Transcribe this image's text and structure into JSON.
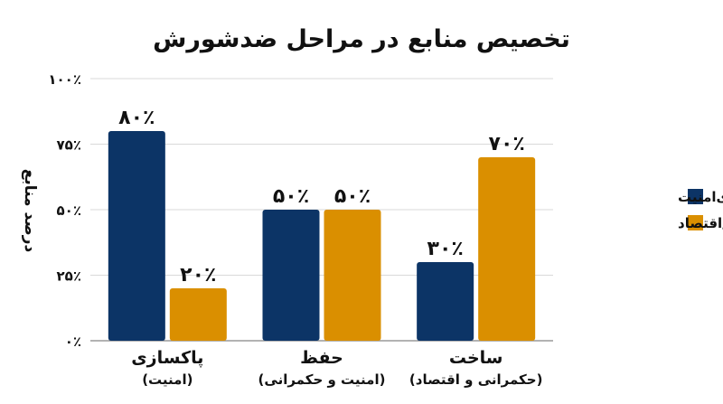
{
  "chart_data": {
    "type": "bar",
    "title": "تخصیص منابع در مراحل ضدشورش",
    "ylabel": "درصد منابع",
    "xlabel": "",
    "ylim": [
      0,
      100
    ],
    "y_ticks": [
      "۰٪",
      "۲۵٪",
      "۵۰٪",
      "۷۵٪",
      "۱۰۰٪"
    ],
    "y_tick_values": [
      0,
      25,
      50,
      75,
      100
    ],
    "grid": true,
    "legend_position": "right",
    "categories": [
      "پاکسازی",
      "حفظ",
      "ساخت"
    ],
    "category_subtitles": [
      "(امنیت)",
      "(امنیت و حکمرانی)",
      "(حکمرانی و اقتصاد)"
    ],
    "series": [
      {
        "name": "سرمه‌ای‌امنیت",
        "color": "#0c3466",
        "values": [
          80,
          50,
          30
        ],
        "labels": [
          "۸۰٪",
          "۵۰٪",
          "۳۰٪"
        ]
      },
      {
        "name": "حکمرانی/اقتصاد",
        "color": "#da8f00",
        "values": [
          20,
          50,
          70
        ],
        "labels": [
          "۲۰٪",
          "۵۰٪",
          "۷۰٪"
        ]
      }
    ]
  }
}
